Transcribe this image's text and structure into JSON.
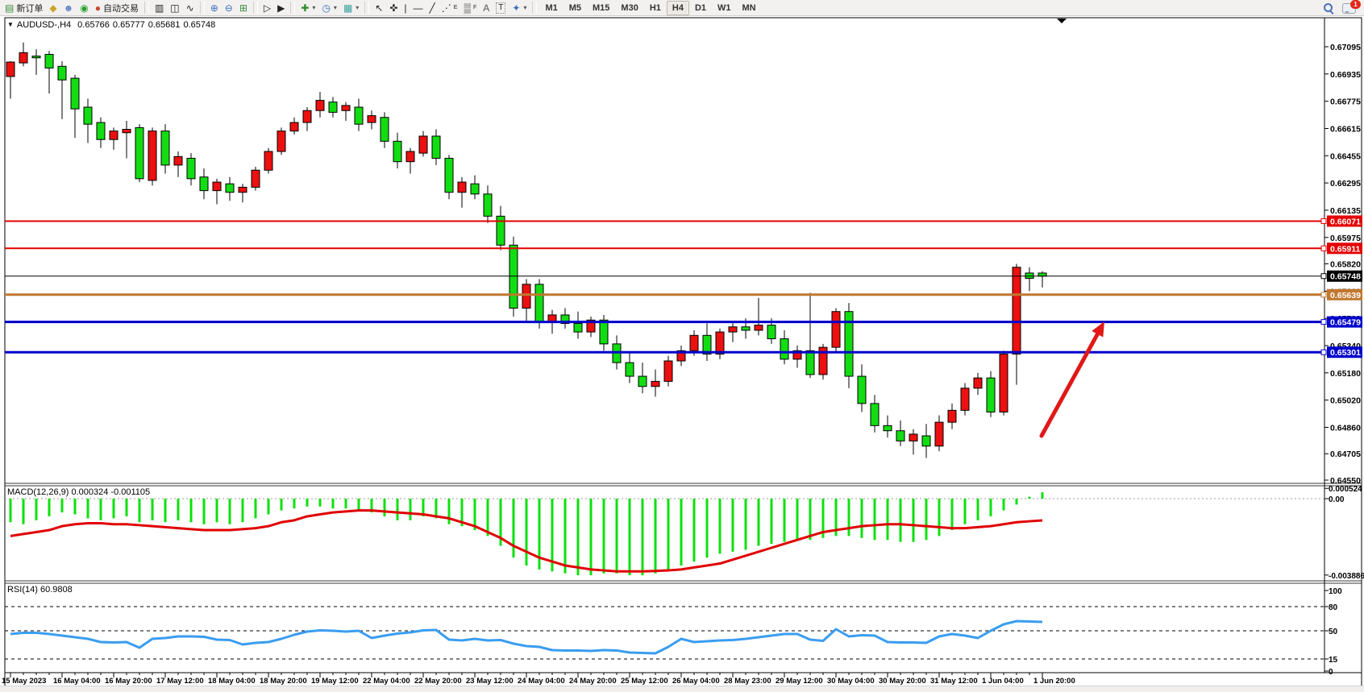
{
  "toolbar": {
    "new_order_label": "新订单",
    "autotrade_label": "自动交易",
    "timeframes": [
      "M1",
      "M5",
      "M15",
      "M30",
      "H1",
      "H4",
      "D1",
      "W1",
      "MN"
    ],
    "active_timeframe": "H4",
    "notification_count": "1",
    "icons": {
      "new_order": "▤",
      "paint_bucket": "◆",
      "profile": "☻",
      "signal": "◉",
      "autotrade": "●",
      "chart_bars": "▥",
      "chart_candles": "◫",
      "chart_line": "∿",
      "zoom_in": "⊕",
      "zoom_out": "⊖",
      "tile_windows": "⊞",
      "arrange_charts": "▷",
      "arrange_charts2": "▶",
      "indicators": "✚",
      "periods_clock": "◷",
      "templates": "▦",
      "cursor": "↖",
      "crosshair": "✜",
      "vertical_line": "|",
      "horizontal_line": "—",
      "trendline": "╱",
      "fibonacci": "⋰",
      "fibonacci_sub": "E",
      "channel": "▒",
      "channel_sub": "F",
      "text": "A",
      "text_label": "T",
      "arrows": "✦",
      "dropdown": "▾",
      "title_marker": "▼"
    }
  },
  "chart": {
    "title": {
      "symbol": "AUDUSD-,H4",
      "open": "0.65766",
      "high": "0.65777",
      "low": "0.65681",
      "close": "0.65748"
    },
    "colors": {
      "up_candle": "#ec1010",
      "down_candle": "#12dd12",
      "wick": "#000000",
      "macd_histogram": "#0de00d",
      "macd_signal": "#e00000",
      "rsi_line": "#3a9df0",
      "resistance_line": "#e40000",
      "current_price_line": "#000000",
      "pivot_line": "#c07830",
      "support_line": "#0000cc",
      "arrow": "#e01818"
    }
  },
  "chart_data": {
    "type": "candlestick",
    "symbol": "AUDUSD-",
    "timeframe": "H4",
    "ylim": [
      0.6455,
      0.67095
    ],
    "price_axis_labels": [
      "0.67095",
      "0.66935",
      "0.66775",
      "0.66615",
      "0.66455",
      "0.66295",
      "0.66135",
      "0.65975",
      "0.65820",
      "0.65660",
      "0.65500",
      "0.65340",
      "0.65180",
      "0.65020",
      "0.64860",
      "0.64705",
      "0.64550"
    ],
    "x_labels": [
      "15 May 2023",
      "16 May 04:00",
      "16 May 20:00",
      "17 May 12:00",
      "18 May 04:00",
      "18 May 20:00",
      "19 May 12:00",
      "22 May 04:00",
      "22 May 20:00",
      "23 May 12:00",
      "24 May 04:00",
      "24 May 20:00",
      "25 May 12:00",
      "26 May 04:00",
      "28 May 23:00",
      "29 May 12:00",
      "30 May 04:00",
      "30 May 20:00",
      "31 May 12:00",
      "1 Jun 04:00",
      "1 Jun 20:00"
    ],
    "hlines": [
      {
        "price": 0.66071,
        "label": "0.66071",
        "color": "#e40000",
        "width": 2
      },
      {
        "price": 0.65911,
        "label": "0.65911",
        "color": "#e40000",
        "width": 2
      },
      {
        "price": 0.65748,
        "label": "0.65748",
        "color": "#000000",
        "width": 1
      },
      {
        "price": 0.65639,
        "label": "0.65639",
        "color": "#c07830",
        "width": 3
      },
      {
        "price": 0.65479,
        "label": "0.65479",
        "color": "#0000cc",
        "width": 3
      },
      {
        "price": 0.65301,
        "label": "0.65301",
        "color": "#0000cc",
        "width": 3
      }
    ],
    "ohlc": [
      [
        0.6692,
        0.6701,
        0.6679,
        0.67005
      ],
      [
        0.67,
        0.6712,
        0.6698,
        0.6706
      ],
      [
        0.6704,
        0.6708,
        0.6693,
        0.6703
      ],
      [
        0.6705,
        0.6707,
        0.6682,
        0.6697
      ],
      [
        0.6698,
        0.6701,
        0.6667,
        0.669
      ],
      [
        0.6691,
        0.6693,
        0.6656,
        0.6673
      ],
      [
        0.6674,
        0.6679,
        0.6653,
        0.6664
      ],
      [
        0.6665,
        0.6668,
        0.665,
        0.6655
      ],
      [
        0.6655,
        0.6662,
        0.6649,
        0.666
      ],
      [
        0.6659,
        0.6666,
        0.6644,
        0.6661
      ],
      [
        0.6662,
        0.6664,
        0.663,
        0.6632
      ],
      [
        0.6631,
        0.6662,
        0.6628,
        0.666
      ],
      [
        0.666,
        0.6664,
        0.6635,
        0.664
      ],
      [
        0.664,
        0.6648,
        0.6633,
        0.6645
      ],
      [
        0.6644,
        0.6647,
        0.6628,
        0.6632
      ],
      [
        0.6633,
        0.6638,
        0.662,
        0.6625
      ],
      [
        0.6625,
        0.6632,
        0.6617,
        0.663
      ],
      [
        0.6629,
        0.6633,
        0.6619,
        0.6624
      ],
      [
        0.6624,
        0.6629,
        0.6618,
        0.6627
      ],
      [
        0.6627,
        0.6639,
        0.6625,
        0.6637
      ],
      [
        0.6637,
        0.665,
        0.6635,
        0.6648
      ],
      [
        0.6648,
        0.6662,
        0.6646,
        0.666
      ],
      [
        0.666,
        0.6668,
        0.6658,
        0.6665
      ],
      [
        0.6665,
        0.6674,
        0.666,
        0.6672
      ],
      [
        0.6672,
        0.6683,
        0.6668,
        0.6678
      ],
      [
        0.6677,
        0.668,
        0.6668,
        0.6671
      ],
      [
        0.6672,
        0.6677,
        0.6666,
        0.6675
      ],
      [
        0.6674,
        0.6679,
        0.666,
        0.6664
      ],
      [
        0.6665,
        0.6672,
        0.6661,
        0.6669
      ],
      [
        0.6668,
        0.6671,
        0.665,
        0.6654
      ],
      [
        0.6654,
        0.6659,
        0.6638,
        0.6642
      ],
      [
        0.6642,
        0.665,
        0.6635,
        0.6648
      ],
      [
        0.6647,
        0.666,
        0.6645,
        0.6657
      ],
      [
        0.6657,
        0.6661,
        0.664,
        0.6644
      ],
      [
        0.6644,
        0.6646,
        0.662,
        0.6624
      ],
      [
        0.6624,
        0.6633,
        0.6615,
        0.663
      ],
      [
        0.6629,
        0.6634,
        0.662,
        0.6623
      ],
      [
        0.6623,
        0.6628,
        0.6606,
        0.661
      ],
      [
        0.661,
        0.6616,
        0.659,
        0.6593
      ],
      [
        0.6593,
        0.6598,
        0.6551,
        0.6556
      ],
      [
        0.6556,
        0.6573,
        0.6548,
        0.657
      ],
      [
        0.657,
        0.6573,
        0.6544,
        0.6548
      ],
      [
        0.6548,
        0.6555,
        0.6541,
        0.6552
      ],
      [
        0.6552,
        0.6556,
        0.6544,
        0.6547
      ],
      [
        0.6547,
        0.6554,
        0.6538,
        0.6542
      ],
      [
        0.6542,
        0.6551,
        0.6539,
        0.6549
      ],
      [
        0.6549,
        0.6552,
        0.6531,
        0.6535
      ],
      [
        0.6535,
        0.654,
        0.652,
        0.6524
      ],
      [
        0.6524,
        0.653,
        0.6512,
        0.6516
      ],
      [
        0.6516,
        0.6524,
        0.6506,
        0.651
      ],
      [
        0.651,
        0.652,
        0.6504,
        0.6513
      ],
      [
        0.6513,
        0.6528,
        0.651,
        0.6525
      ],
      [
        0.6525,
        0.6534,
        0.6522,
        0.6531
      ],
      [
        0.6531,
        0.6543,
        0.6528,
        0.654
      ],
      [
        0.654,
        0.6547,
        0.6525,
        0.6529
      ],
      [
        0.6529,
        0.6544,
        0.6526,
        0.6542
      ],
      [
        0.6542,
        0.6548,
        0.6536,
        0.6545
      ],
      [
        0.6545,
        0.655,
        0.6538,
        0.6543
      ],
      [
        0.6543,
        0.6562,
        0.654,
        0.6546
      ],
      [
        0.6546,
        0.655,
        0.6535,
        0.6538
      ],
      [
        0.6538,
        0.6543,
        0.6523,
        0.6526
      ],
      [
        0.6526,
        0.6534,
        0.6521,
        0.6531
      ],
      [
        0.6531,
        0.6565,
        0.6515,
        0.6517
      ],
      [
        0.6517,
        0.6535,
        0.6514,
        0.6533
      ],
      [
        0.6533,
        0.6556,
        0.653,
        0.6554
      ],
      [
        0.6554,
        0.6559,
        0.6509,
        0.6516
      ],
      [
        0.6516,
        0.6523,
        0.6495,
        0.65
      ],
      [
        0.65,
        0.6505,
        0.6483,
        0.6487
      ],
      [
        0.6487,
        0.6493,
        0.648,
        0.6484
      ],
      [
        0.6484,
        0.649,
        0.6475,
        0.6478
      ],
      [
        0.6478,
        0.6485,
        0.647,
        0.6482
      ],
      [
        0.6481,
        0.6488,
        0.6468,
        0.6475
      ],
      [
        0.6475,
        0.6493,
        0.6472,
        0.6489
      ],
      [
        0.6489,
        0.65,
        0.6485,
        0.6496
      ],
      [
        0.6496,
        0.6512,
        0.6493,
        0.6509
      ],
      [
        0.6509,
        0.6518,
        0.6505,
        0.6515
      ],
      [
        0.6515,
        0.6519,
        0.6492,
        0.6495
      ],
      [
        0.6495,
        0.6531,
        0.6493,
        0.6529
      ],
      [
        0.6529,
        0.6582,
        0.6511,
        0.658
      ],
      [
        0.65766,
        0.658,
        0.6566,
        0.65735
      ],
      [
        0.65766,
        0.65777,
        0.65681,
        0.65748
      ]
    ],
    "indicators": {
      "macd": {
        "label": "MACD(12,26,9)",
        "main_value": "0.000324",
        "signal_value": "-0.001105",
        "scale_labels": [
          "0.000524",
          "0.00",
          "-0.003886"
        ],
        "histogram": [
          -0.0012,
          -0.0013,
          -0.0011,
          -0.0009,
          -0.0007,
          -0.0008,
          -0.001,
          -0.0011,
          -0.001,
          -0.0009,
          -0.0012,
          -0.0011,
          -0.0012,
          -0.0011,
          -0.0012,
          -0.0013,
          -0.0012,
          -0.0013,
          -0.0012,
          -0.001,
          -0.0008,
          -0.0006,
          -0.0005,
          -0.0004,
          -0.0004,
          -0.0005,
          -0.0005,
          -0.0006,
          -0.0007,
          -0.0009,
          -0.0011,
          -0.0011,
          -0.0009,
          -0.001,
          -0.0013,
          -0.0014,
          -0.0016,
          -0.0019,
          -0.0024,
          -0.003,
          -0.0034,
          -0.0036,
          -0.0037,
          -0.0038,
          -0.0039,
          -0.0039,
          -0.0038,
          -0.0038,
          -0.0039,
          -0.0039,
          -0.0038,
          -0.0036,
          -0.0034,
          -0.0032,
          -0.003,
          -0.0028,
          -0.0027,
          -0.0026,
          -0.0024,
          -0.0023,
          -0.0022,
          -0.0021,
          -0.0021,
          -0.002,
          -0.0019,
          -0.0019,
          -0.002,
          -0.0021,
          -0.0021,
          -0.0022,
          -0.0022,
          -0.0021,
          -0.0019,
          -0.0016,
          -0.0013,
          -0.0011,
          -0.0009,
          -0.0006,
          -0.0003,
          0.0001,
          0.000324
        ],
        "signal": [
          -0.0019,
          -0.0018,
          -0.0017,
          -0.0016,
          -0.0014,
          -0.0013,
          -0.00125,
          -0.00125,
          -0.0013,
          -0.0013,
          -0.00135,
          -0.0014,
          -0.00145,
          -0.0015,
          -0.00155,
          -0.0016,
          -0.0016,
          -0.0016,
          -0.00155,
          -0.0015,
          -0.0014,
          -0.0012,
          -0.0011,
          -0.0009,
          -0.0008,
          -0.0007,
          -0.00065,
          -0.0006,
          -0.0006,
          -0.00065,
          -0.0007,
          -0.00075,
          -0.0008,
          -0.0009,
          -0.001,
          -0.0012,
          -0.0014,
          -0.0017,
          -0.002,
          -0.0024,
          -0.0027,
          -0.003,
          -0.0032,
          -0.0034,
          -0.0035,
          -0.0036,
          -0.00365,
          -0.0037,
          -0.0037,
          -0.0037,
          -0.00368,
          -0.00365,
          -0.0036,
          -0.0035,
          -0.0034,
          -0.0033,
          -0.0031,
          -0.0029,
          -0.0027,
          -0.0025,
          -0.0023,
          -0.0021,
          -0.0019,
          -0.0017,
          -0.0016,
          -0.0015,
          -0.0014,
          -0.00135,
          -0.0013,
          -0.0013,
          -0.00135,
          -0.0014,
          -0.00145,
          -0.0015,
          -0.0015,
          -0.00145,
          -0.0014,
          -0.0013,
          -0.0012,
          -0.00115,
          -0.001105
        ]
      },
      "rsi": {
        "label": "RSI(14)",
        "value": "60.9808",
        "level_labels": [
          "100",
          "80",
          "50",
          "15",
          "0"
        ],
        "levels": [
          100,
          80,
          50,
          15,
          0
        ],
        "dashed_levels": [
          80,
          50,
          15
        ],
        "series": [
          46,
          47.5,
          47.5,
          46,
          44,
          42,
          40,
          36,
          35.5,
          36,
          29,
          40,
          41,
          43,
          43,
          42.5,
          39,
          38.5,
          33,
          35,
          36,
          40,
          45,
          49,
          50.5,
          50,
          49,
          50,
          41,
          44,
          46.5,
          48,
          50.5,
          51,
          39,
          38,
          40,
          38,
          38.5,
          34,
          31,
          30,
          26,
          25.5,
          25.5,
          25,
          26,
          25.5,
          23,
          22.5,
          22,
          30,
          40,
          36,
          37,
          38,
          38.5,
          40,
          42,
          44,
          46,
          46,
          39,
          37.5,
          52,
          43,
          44.5,
          44,
          36,
          35.5,
          35.5,
          35,
          43,
          46,
          44,
          41,
          50,
          58,
          62,
          61.5,
          60.98
        ]
      }
    },
    "annotation": {
      "type": "arrow",
      "color": "#e01818",
      "from": [
        1292,
        541
      ],
      "to": [
        1370,
        399
      ]
    }
  }
}
